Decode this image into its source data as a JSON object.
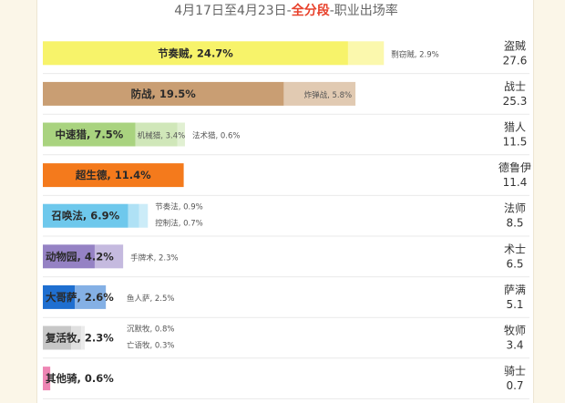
{
  "title": {
    "prefix": "4月17日至4月23日-",
    "highlight": "全分段",
    "suffix": "-职业出场率"
  },
  "colors": {
    "盗贼": "#f7f36a",
    "战士": "#c99e73",
    "猎人": "#a9d37f",
    "德鲁伊": "#f47a1c",
    "法师": "#6ec8ec",
    "术士": "#9582c4",
    "萨满": "#1f6fd0",
    "牧师": "#c7c7c7",
    "骑士": "#ee86b4"
  },
  "chart_data": {
    "type": "bar",
    "orientation": "horizontal",
    "stacked": true,
    "unit": "%",
    "classes": [
      {
        "name": "盗贼",
        "value": "27.6",
        "total": 27.6,
        "decks": [
          {
            "name": "节奏贼",
            "value": 24.7,
            "label": "节奏贼, 24.7%"
          },
          {
            "name": "剽窃贼",
            "value": 2.9,
            "label": "剽窃贼, 2.9%"
          }
        ]
      },
      {
        "name": "战士",
        "value": "25.3",
        "total": 25.3,
        "decks": [
          {
            "name": "防战",
            "value": 19.5,
            "label": "防战, 19.5%"
          },
          {
            "name": "炸弹战",
            "value": 5.8,
            "label": "炸弹战, 5.8%"
          }
        ]
      },
      {
        "name": "猎人",
        "value": "11.5",
        "total": 11.5,
        "decks": [
          {
            "name": "中速猎",
            "value": 7.5,
            "label": "中速猎, 7.5%"
          },
          {
            "name": "机械猎",
            "value": 3.4,
            "label": "机械猎, 3.4%"
          },
          {
            "name": "法术猎",
            "value": 0.6,
            "label": "法术猎, 0.6%"
          }
        ]
      },
      {
        "name": "德鲁伊",
        "value": "11.4",
        "total": 11.4,
        "decks": [
          {
            "name": "超生德",
            "value": 11.4,
            "label": "超生德, 11.4%"
          }
        ]
      },
      {
        "name": "法师",
        "value": "8.5",
        "total": 8.5,
        "decks": [
          {
            "name": "召唤法",
            "value": 6.9,
            "label": "召唤法, 6.9%"
          },
          {
            "name": "节奏法",
            "value": 0.9,
            "label": "节奏法, 0.9%"
          },
          {
            "name": "控制法",
            "value": 0.7,
            "label": "控制法, 0.7%"
          }
        ]
      },
      {
        "name": "术士",
        "value": "6.5",
        "total": 6.5,
        "decks": [
          {
            "name": "动物园",
            "value": 4.2,
            "label": "动物园, 4.2%"
          },
          {
            "name": "手牌术",
            "value": 2.3,
            "label": "手牌术, 2.3%"
          }
        ]
      },
      {
        "name": "萨满",
        "value": "5.1",
        "total": 5.1,
        "decks": [
          {
            "name": "大哥萨",
            "value": 2.6,
            "label": "大哥萨, 2.6%"
          },
          {
            "name": "鱼人萨",
            "value": 2.5,
            "label": "鱼人萨, 2.5%"
          }
        ]
      },
      {
        "name": "牧师",
        "value": "3.4",
        "total": 3.4,
        "decks": [
          {
            "name": "复活牧",
            "value": 2.3,
            "label": "复活牧, 2.3%"
          },
          {
            "name": "沉默牧",
            "value": 0.8,
            "label": "沉默牧, 0.8%"
          },
          {
            "name": "亡语牧",
            "value": 0.3,
            "label": "亡语牧, 0.3%"
          }
        ]
      },
      {
        "name": "骑士",
        "value": "0.7",
        "total": 0.7,
        "decks": [
          {
            "name": "其他骑",
            "value": 0.6,
            "label": "其他骑, 0.6%"
          }
        ]
      }
    ]
  }
}
